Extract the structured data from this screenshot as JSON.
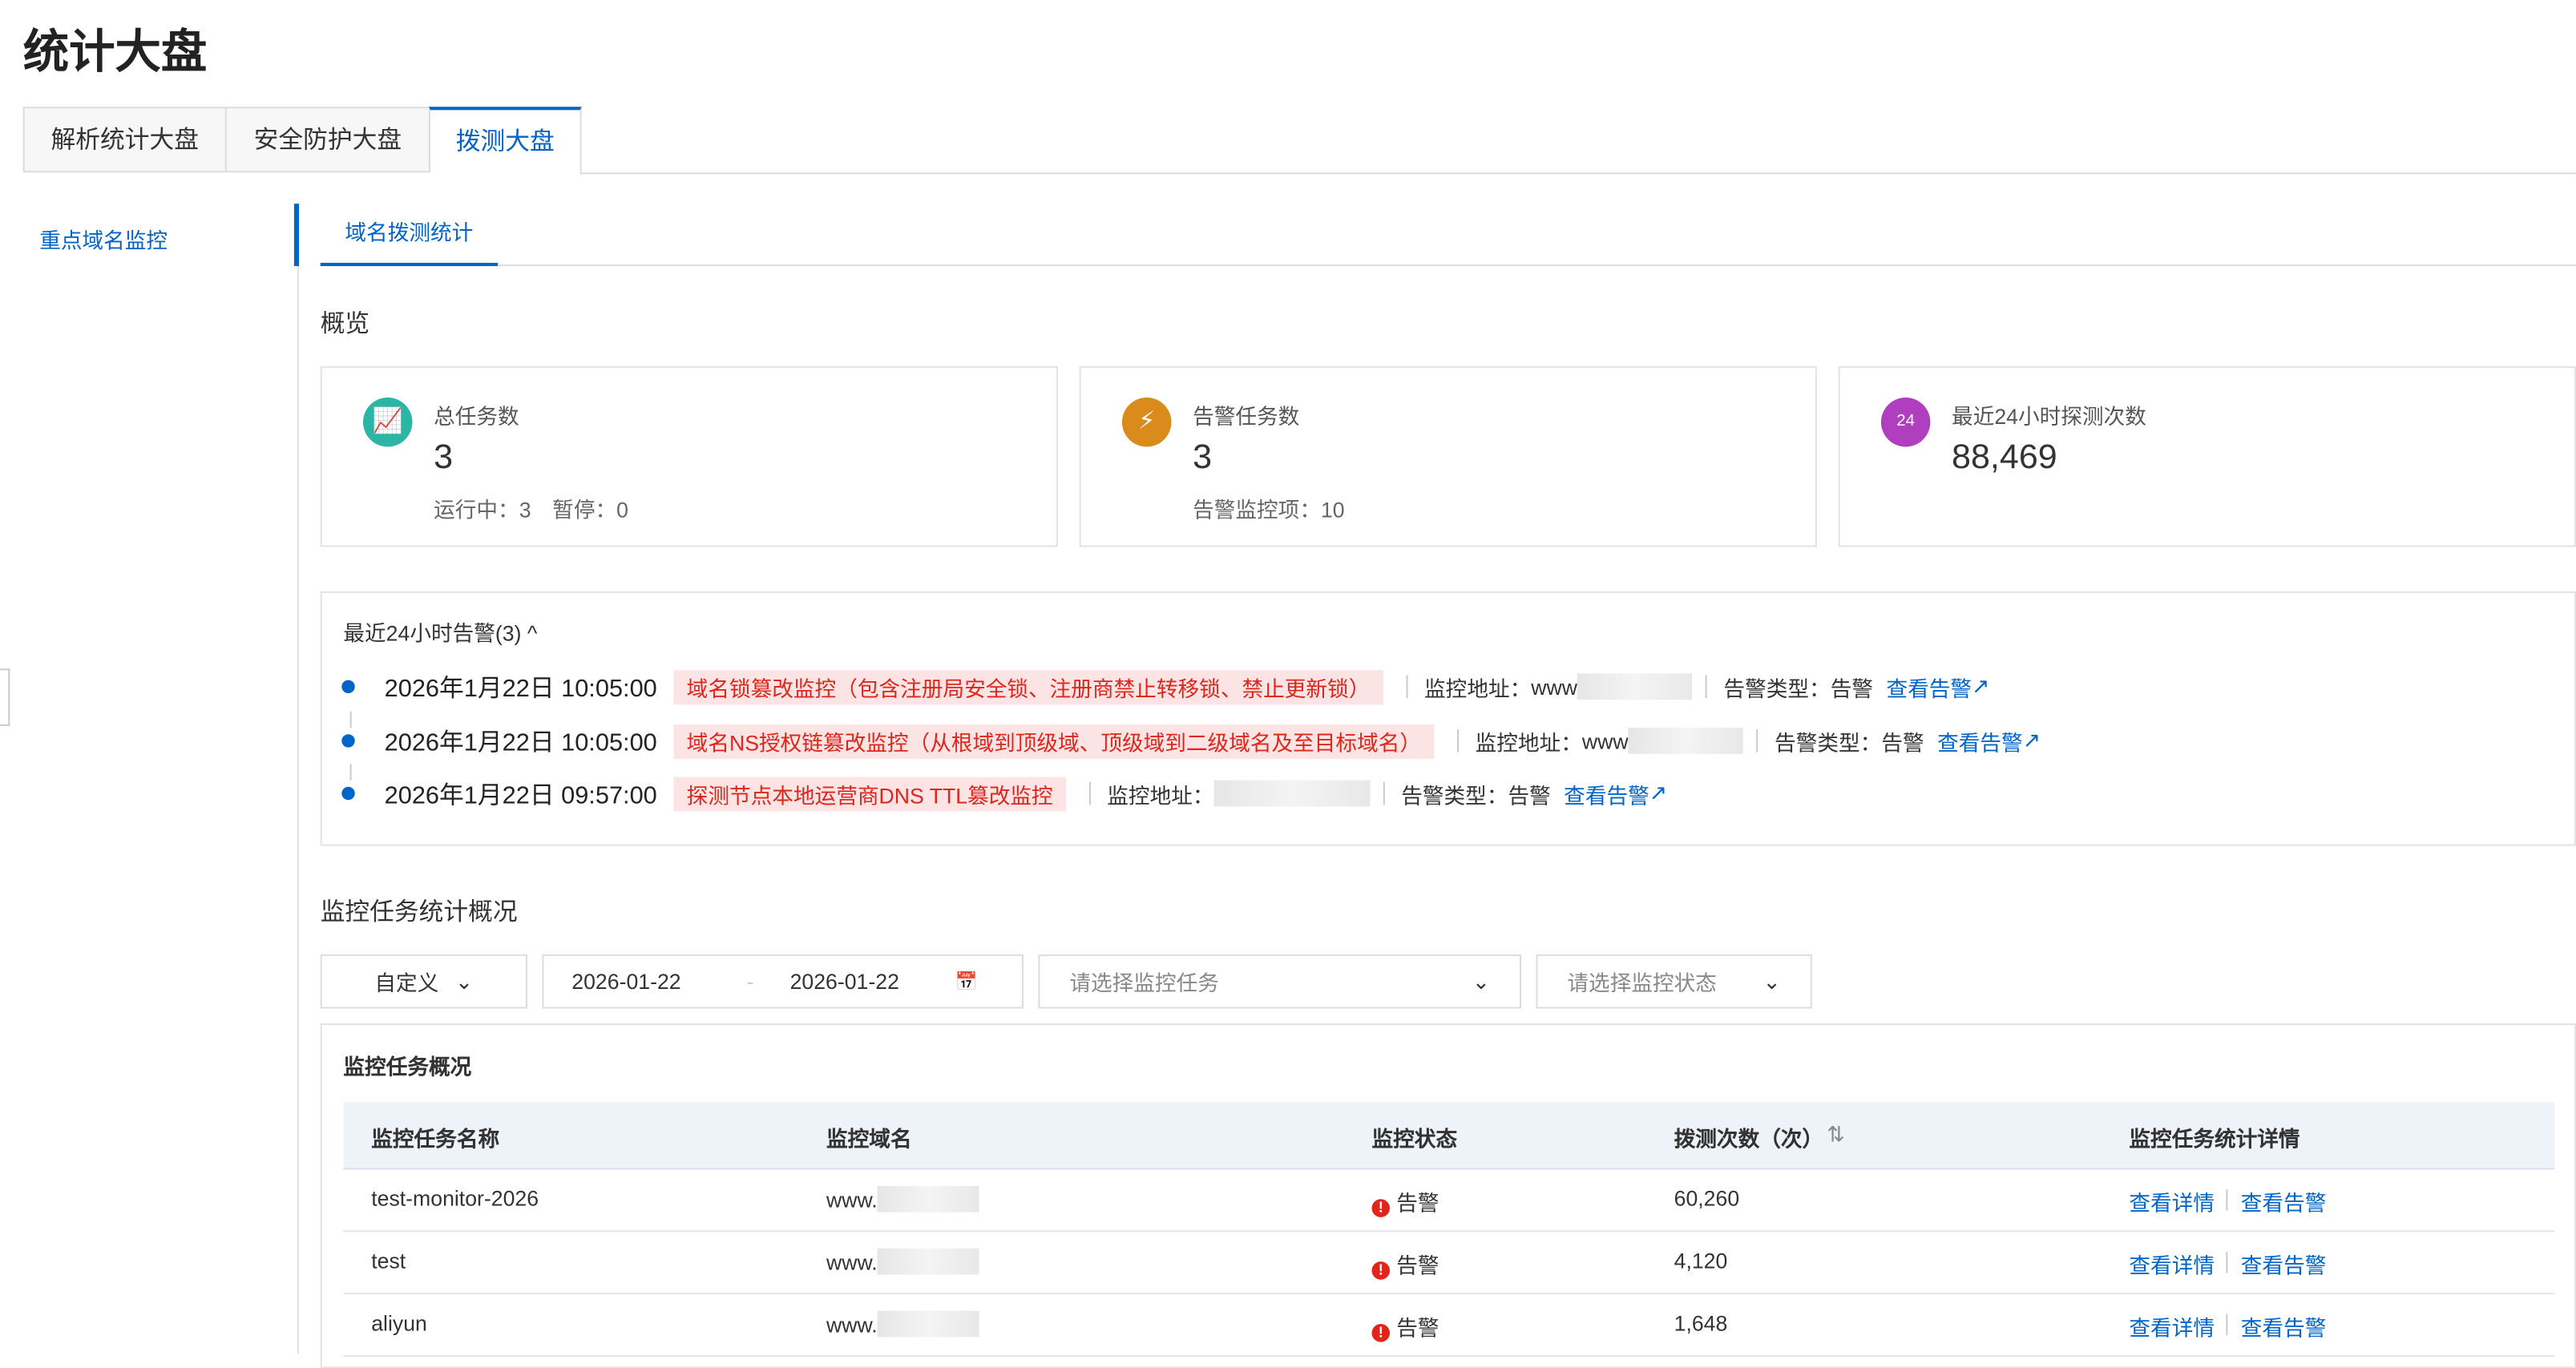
{
  "page_title": "统计大盘",
  "tabs": [
    {
      "label": "解析统计大盘"
    },
    {
      "label": "安全防护大盘"
    },
    {
      "label": "拨测大盘",
      "active": true
    }
  ],
  "sidebar": {
    "items": [
      {
        "label": "重点域名监控",
        "active": true
      }
    ]
  },
  "subtabs": [
    {
      "label": "域名拨测统计",
      "active": true
    }
  ],
  "overview": {
    "title": "概览",
    "cards": [
      {
        "label": "总任务数",
        "value": "3",
        "sub": "运行中：3　暂停：0",
        "icon": "task-chart-icon",
        "color": "#2bb5a5"
      },
      {
        "label": "告警任务数",
        "value": "3",
        "sub": "告警监控项：10",
        "icon": "alarm-bell-icon",
        "color": "#d98b1c"
      },
      {
        "label": "最近24小时探测次数",
        "value": "88,469",
        "icon": "probe-24h-icon",
        "color": "#b03fc0"
      }
    ]
  },
  "alerts": {
    "title": "最近24小时告警(3)",
    "addr_label": "监控地址：",
    "type_label": "告警类型：",
    "link_label": "查看告警",
    "items": [
      {
        "time": "2026年1月22日 10:05:00",
        "tag": "域名锁篡改监控（包含注册局安全锁、注册商禁止转移锁、禁止更新锁）",
        "addr": "www",
        "type": "告警"
      },
      {
        "time": "2026年1月22日 10:05:00",
        "tag": "域名NS授权链篡改监控（从根域到顶级域、顶级域到二级域名及至目标域名）",
        "addr": "www",
        "type": "告警"
      },
      {
        "time": "2026年1月22日 09:57:00",
        "tag": "探测节点本地运营商DNS TTL篡改监控",
        "addr": "",
        "type": "告警"
      }
    ]
  },
  "stats": {
    "title": "监控任务统计概况",
    "filters": {
      "range": "自定义",
      "date_start": "2026-01-22",
      "date_end": "2026-01-22",
      "task_placeholder": "请选择监控任务",
      "status_placeholder": "请选择监控状态"
    },
    "table": {
      "title": "监控任务概况",
      "columns": [
        "监控任务名称",
        "监控域名",
        "监控状态",
        "拨测次数（次）",
        "监控任务统计详情"
      ],
      "rows": [
        {
          "name": "test-monitor-2026",
          "domain": "www.",
          "status": "告警",
          "count": "60,260"
        },
        {
          "name": "test",
          "domain": "www.",
          "status": "告警",
          "count": "4,120"
        },
        {
          "name": "aliyun",
          "domain": "www.",
          "status": "告警",
          "count": "1,648"
        }
      ],
      "action_detail": "查看详情",
      "action_alert": "查看告警"
    }
  },
  "colors": {
    "accent": "#0064c8",
    "alert": "#e0251b",
    "header_bg": "#eef3fa"
  }
}
